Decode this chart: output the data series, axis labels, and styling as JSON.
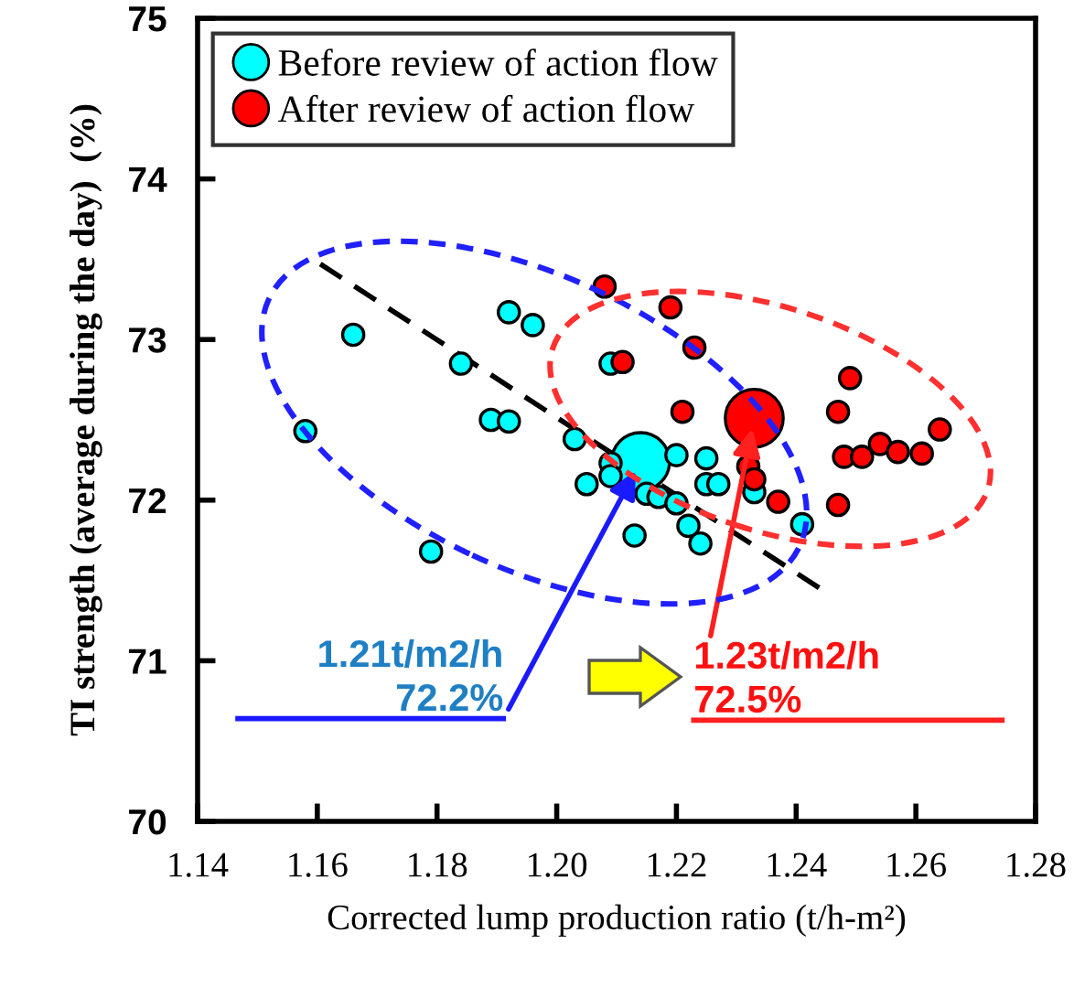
{
  "chart_data": {
    "type": "scatter",
    "xlabel": "Corrected lump production ratio (t/h-m²)",
    "ylabel": "TI strength (average during the day)  (%)",
    "xlim": [
      1.14,
      1.28
    ],
    "xticks": [
      {
        "value": 1.14,
        "label": "1.14"
      },
      {
        "value": 1.16,
        "label": "1.16"
      },
      {
        "value": 1.18,
        "label": "1.18"
      },
      {
        "value": 1.2,
        "label": "1.20"
      },
      {
        "value": 1.22,
        "label": "1.22"
      },
      {
        "value": 1.24,
        "label": "1.24"
      },
      {
        "value": 1.26,
        "label": "1.26"
      },
      {
        "value": 1.28,
        "label": "1.28"
      }
    ],
    "ylim": [
      70,
      75
    ],
    "yticks": [
      70,
      71,
      72,
      73,
      74,
      75
    ],
    "grid": false,
    "legend": "top left",
    "marker": "circle",
    "series": [
      {
        "name": "Before review of action flow",
        "color": "#00ffff",
        "x": [
          1.166,
          1.158,
          1.179,
          1.184,
          1.189,
          1.192,
          1.192,
          1.196,
          1.209,
          1.203,
          1.209,
          1.209,
          1.205,
          1.22,
          1.225,
          1.215,
          1.217,
          1.22,
          1.213,
          1.222,
          1.224,
          1.225,
          1.227,
          1.233,
          1.241
        ],
        "values": [
          73.03,
          72.43,
          71.68,
          72.85,
          72.5,
          72.49,
          73.17,
          73.09,
          72.85,
          72.38,
          72.23,
          72.15,
          72.1,
          72.28,
          72.26,
          72.04,
          72.02,
          71.98,
          71.78,
          71.84,
          71.73,
          72.1,
          72.1,
          72.05,
          71.85
        ]
      },
      {
        "name": "After review of action flow",
        "color": "#ff0000",
        "x": [
          1.208,
          1.219,
          1.223,
          1.211,
          1.221,
          1.232,
          1.233,
          1.237,
          1.249,
          1.247,
          1.248,
          1.251,
          1.254,
          1.257,
          1.261,
          1.264,
          1.247
        ],
        "values": [
          73.33,
          73.2,
          72.95,
          72.86,
          72.55,
          72.21,
          72.13,
          71.99,
          72.76,
          72.55,
          72.27,
          72.27,
          72.35,
          72.3,
          72.29,
          72.44,
          71.97
        ]
      },
      {
        "type": "line",
        "color": "#000000",
        "line_style": "dashed",
        "marker": "none",
        "x": [
          1.1605,
          1.244
        ],
        "values": [
          73.47,
          71.45
        ]
      },
      {
        "type": "bubble",
        "color": "#00ffff",
        "x": [
          1.214
        ],
        "values": [
          72.24
        ],
        "sizes": [
          1
        ]
      },
      {
        "type": "bubble",
        "color": "#ff0000",
        "x": [
          1.233
        ],
        "values": [
          72.51
        ],
        "sizes": [
          1
        ]
      }
    ],
    "annotations": [
      {
        "text": "1.21t/m2/h\n72.2%",
        "x": 1.214,
        "y": 72.24
      },
      {
        "text": "1.23t/m2/h\n72.5%",
        "x": 1.233,
        "y": 72.51
      }
    ]
  }
}
